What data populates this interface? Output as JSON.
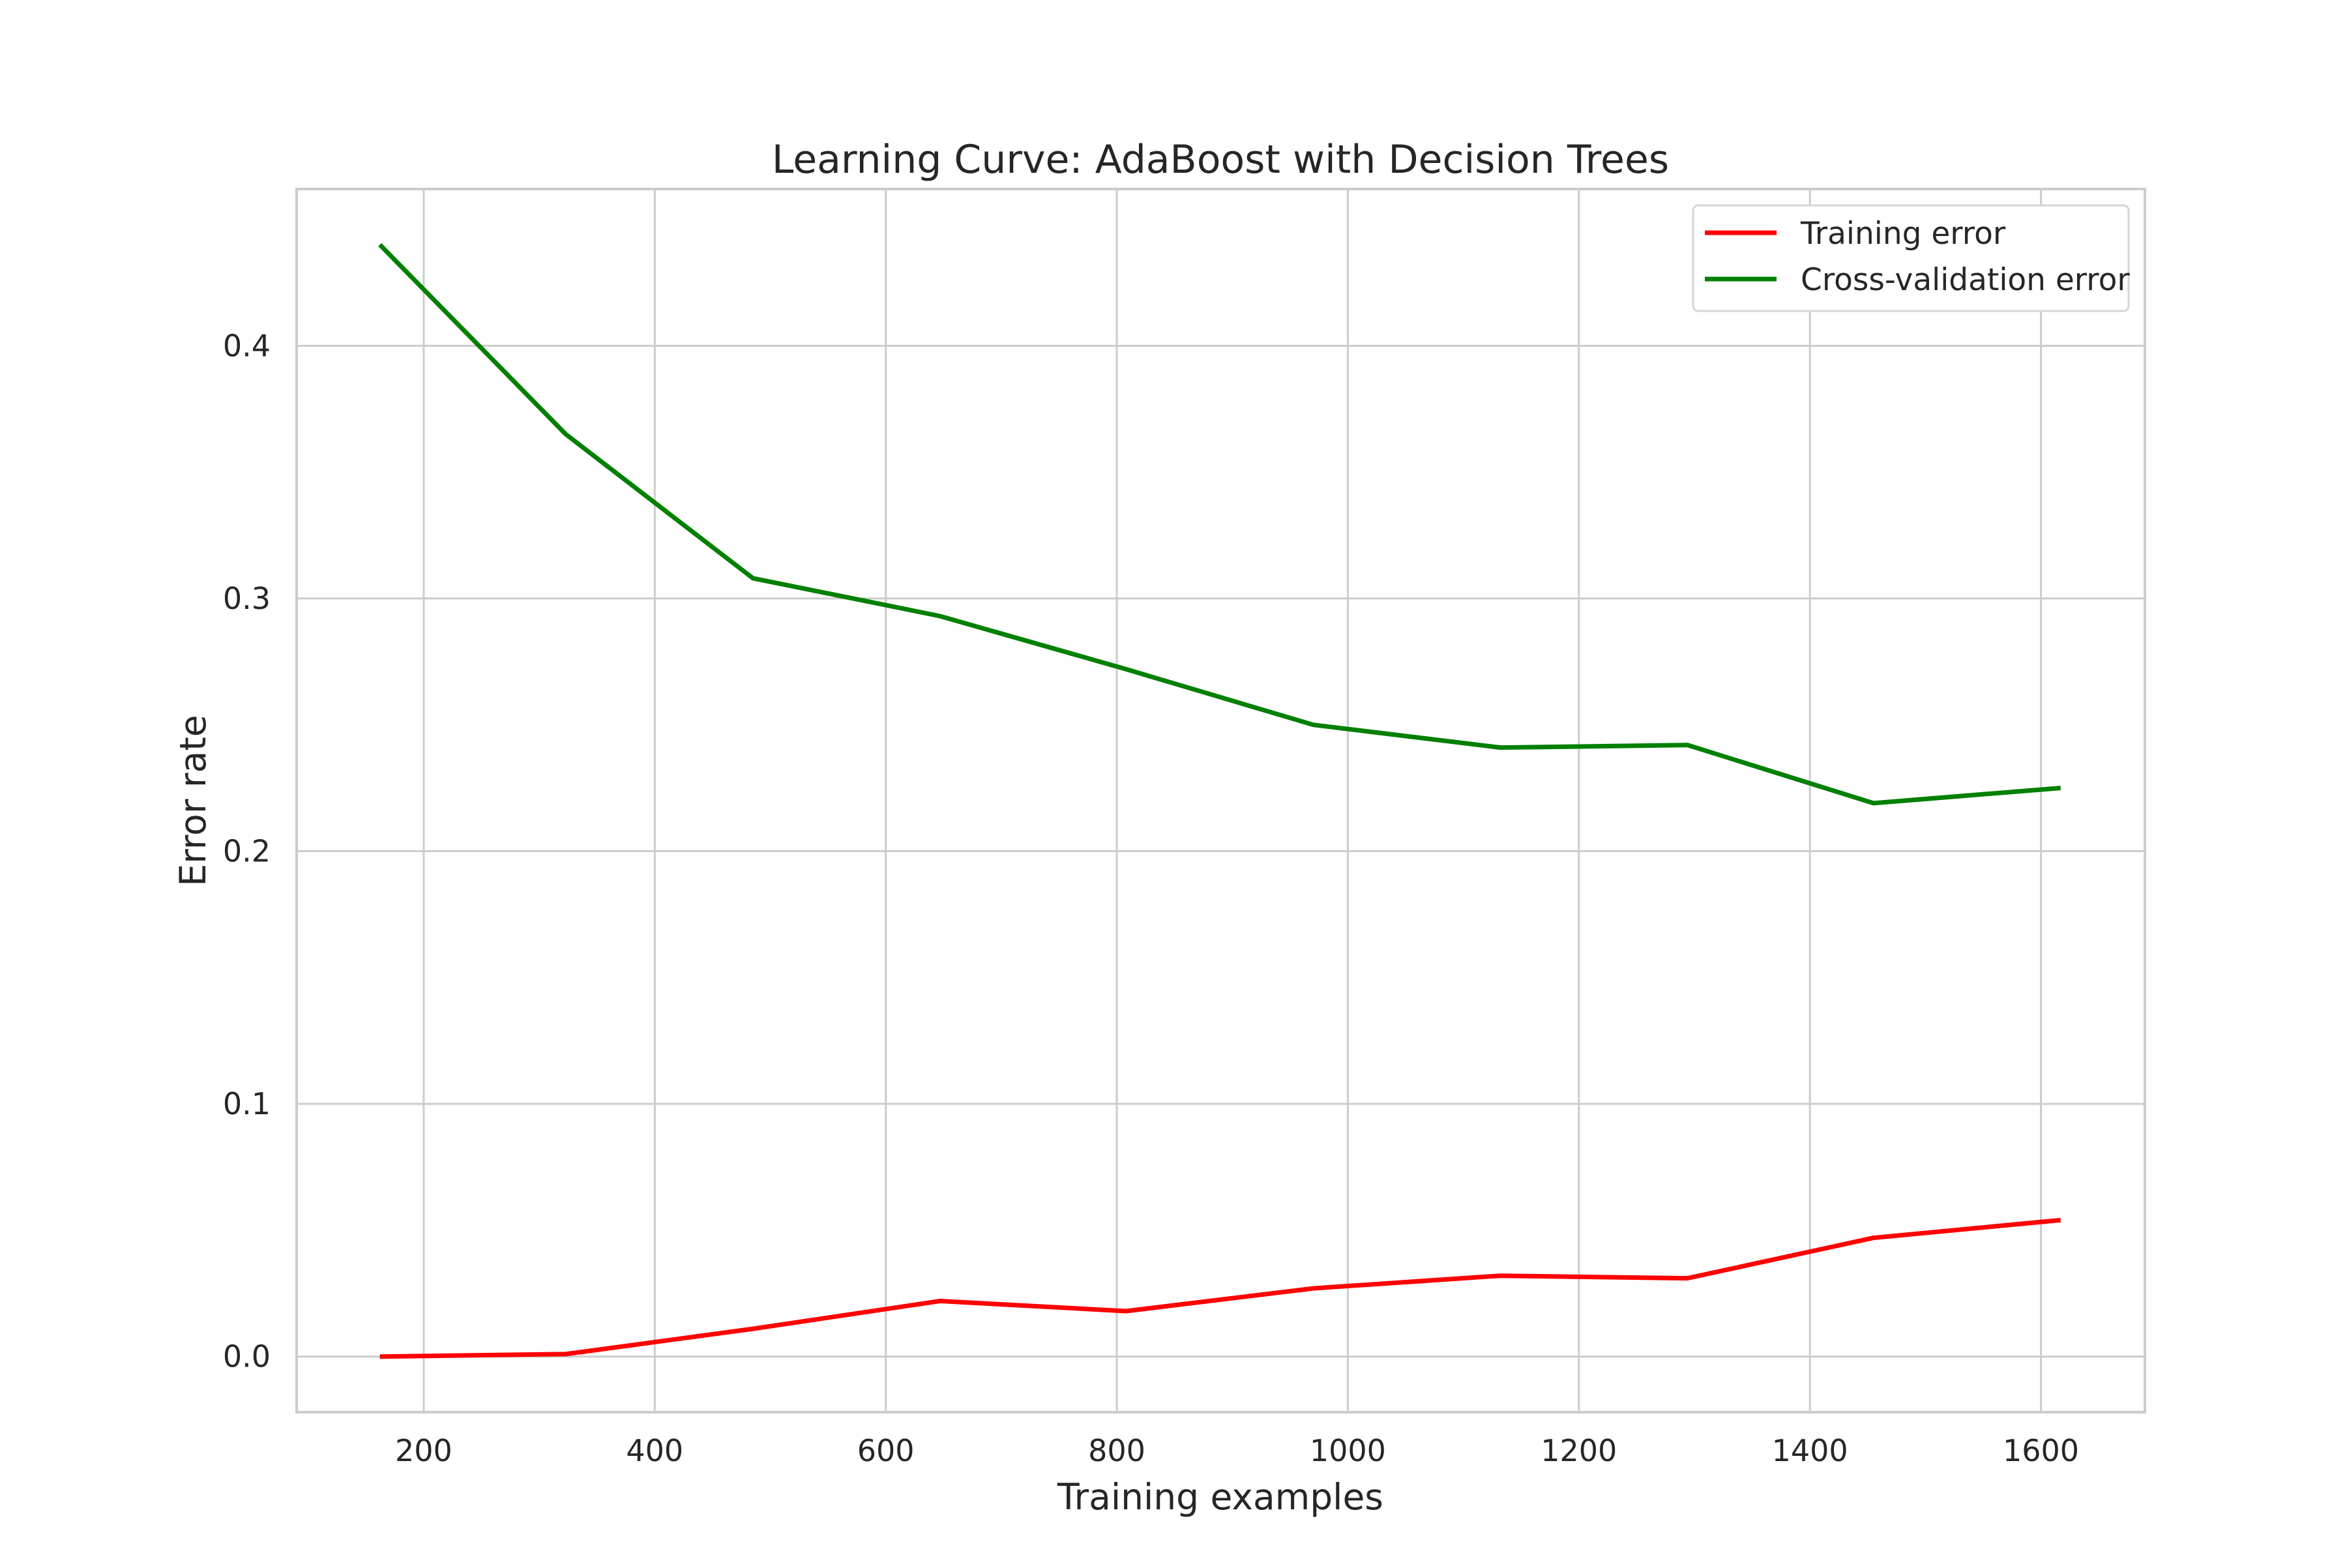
{
  "chart_data": {
    "type": "line",
    "title": "Learning Curve: AdaBoost with Decision Trees",
    "xlabel": "Training examples",
    "ylabel": "Error rate",
    "xlim": [
      90,
      1690
    ],
    "ylim": [
      -0.022,
      0.462
    ],
    "xticks": [
      200,
      400,
      600,
      800,
      1000,
      1200,
      1400,
      1600
    ],
    "yticks": [
      0.0,
      0.1,
      0.2,
      0.3,
      0.4
    ],
    "grid": true,
    "legend_position": "top-right",
    "x": [
      162,
      323,
      485,
      647,
      808,
      970,
      1132,
      1294,
      1455,
      1617
    ],
    "series": [
      {
        "name": "Training error",
        "color": "#ff0000",
        "values": [
          0.0,
          0.001,
          0.011,
          0.022,
          0.018,
          0.027,
          0.032,
          0.031,
          0.047,
          0.054
        ]
      },
      {
        "name": "Cross-validation error",
        "color": "#008000",
        "values": [
          0.44,
          0.365,
          0.308,
          0.293,
          0.272,
          0.25,
          0.241,
          0.242,
          0.219,
          0.225
        ]
      }
    ]
  }
}
